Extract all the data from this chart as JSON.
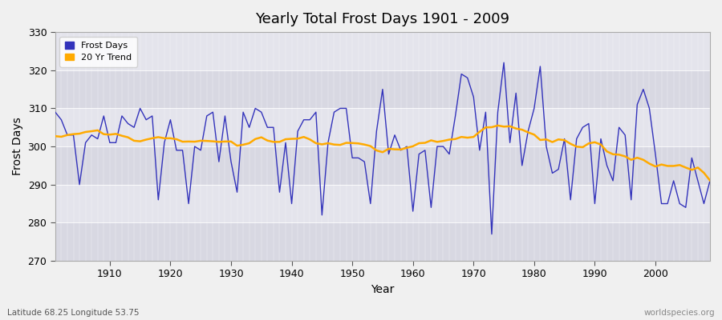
{
  "title": "Yearly Total Frost Days 1901 - 2009",
  "xlabel": "Year",
  "ylabel": "Frost Days",
  "bottom_left_text": "Latitude 68.25 Longitude 53.75",
  "bottom_right_text": "worldspecies.org",
  "ylim": [
    270,
    330
  ],
  "xlim": [
    1901,
    2009
  ],
  "yticks": [
    270,
    280,
    290,
    300,
    310,
    320,
    330
  ],
  "xticks": [
    1910,
    1920,
    1930,
    1940,
    1950,
    1960,
    1970,
    1980,
    1990,
    2000
  ],
  "bg_color": "#f0f0f0",
  "plot_bg_color": "#e8e8e8",
  "line_color": "#3333bb",
  "trend_color": "#ffaa00",
  "band_color_light": "#e0e0e8",
  "band_color_dark": "#d0d0dc",
  "frost_days": [
    309,
    307,
    303,
    303,
    290,
    301,
    303,
    302,
    308,
    301,
    301,
    308,
    306,
    305,
    310,
    307,
    308,
    286,
    301,
    307,
    299,
    299,
    285,
    300,
    299,
    308,
    309,
    296,
    308,
    296,
    288,
    309,
    305,
    310,
    309,
    305,
    305,
    288,
    301,
    285,
    304,
    307,
    307,
    309,
    282,
    301,
    309,
    310,
    310,
    297,
    297,
    296,
    285,
    304,
    315,
    298,
    303,
    299,
    300,
    283,
    298,
    299,
    284,
    300,
    300,
    298,
    308,
    319,
    318,
    313,
    299,
    309,
    277,
    309,
    322,
    301,
    314,
    295,
    304,
    310,
    321,
    300,
    293,
    294,
    302,
    286,
    302,
    305,
    306,
    285,
    302,
    295,
    291,
    305,
    303,
    286,
    311,
    315,
    310,
    298,
    285,
    285,
    291,
    285,
    284,
    297,
    291,
    285,
    291
  ]
}
